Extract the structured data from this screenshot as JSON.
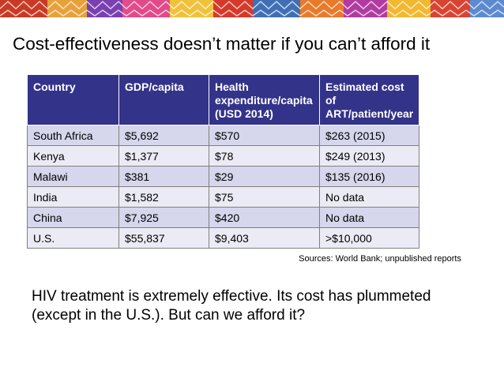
{
  "slide": {
    "title": "Cost-effectiveness doesn’t matter if you can’t afford it",
    "sources": "Sources: World Bank; unpublished reports",
    "body": "HIV treatment is extremely effective. Its cost has plummeted (except in the U.S.). But can we afford it?"
  },
  "table": {
    "headers": [
      "Country",
      "GDP/capita",
      "Health expenditure/capita (USD 2014)",
      "Estimated cost of ART/patient/year"
    ],
    "rows": [
      [
        "South Africa",
        "$5,692",
        "$570",
        "$263 (2015)"
      ],
      [
        "Kenya",
        "$1,377",
        "$78",
        "$249 (2013)"
      ],
      [
        "Malawi",
        "$381",
        "$29",
        "$135 (2016)"
      ],
      [
        "India",
        "$1,582",
        "$75",
        "No data"
      ],
      [
        "China",
        "$7,925",
        "$420",
        "No data"
      ],
      [
        "U.S.",
        "$55,837",
        "$9,403",
        ">$10,000"
      ]
    ]
  },
  "colors": {
    "header_bg": "#33338a",
    "row_odd": "#d6d6ec",
    "row_even": "#ebebf5"
  }
}
